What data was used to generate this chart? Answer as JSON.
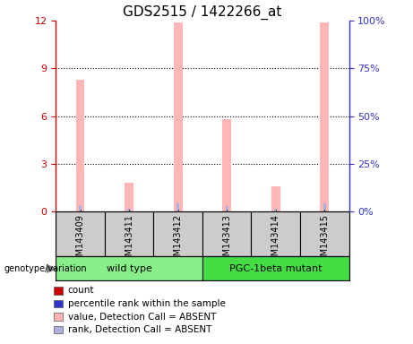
{
  "title": "GDS2515 / 1422266_at",
  "samples": [
    "GSM143409",
    "GSM143411",
    "GSM143412",
    "GSM143413",
    "GSM143414",
    "GSM143415"
  ],
  "pink_bar_heights": [
    8.3,
    1.8,
    11.9,
    5.8,
    1.6,
    11.9
  ],
  "blue_bar_heights": [
    3.2,
    1.3,
    4.2,
    2.8,
    1.3,
    4.2
  ],
  "ylim_left": [
    0,
    12
  ],
  "ylim_right": [
    0,
    100
  ],
  "yticks_left": [
    0,
    3,
    6,
    9,
    12
  ],
  "yticks_right": [
    0,
    25,
    50,
    75,
    100
  ],
  "ytick_labels_right": [
    "0%",
    "25%",
    "50%",
    "75%",
    "100%"
  ],
  "pink_color": "#ffb6b6",
  "blue_color": "#b0b0e0",
  "left_axis_color": "#cc0000",
  "right_axis_color": "#3333cc",
  "grid_color": "black",
  "label_area_color": "#cccccc",
  "wt_color": "#88ee88",
  "pgc_color": "#44dd44",
  "legend_items": [
    {
      "label": "count",
      "color": "#cc0000"
    },
    {
      "label": "percentile rank within the sample",
      "color": "#3333cc"
    },
    {
      "label": "value, Detection Call = ABSENT",
      "color": "#ffb6b6"
    },
    {
      "label": "rank, Detection Call = ABSENT",
      "color": "#b0b0e0"
    }
  ],
  "title_fontsize": 11,
  "tick_fontsize": 8,
  "genotype_label": "genotype/variation",
  "pink_bar_width": 0.18,
  "blue_bar_width": 0.06
}
